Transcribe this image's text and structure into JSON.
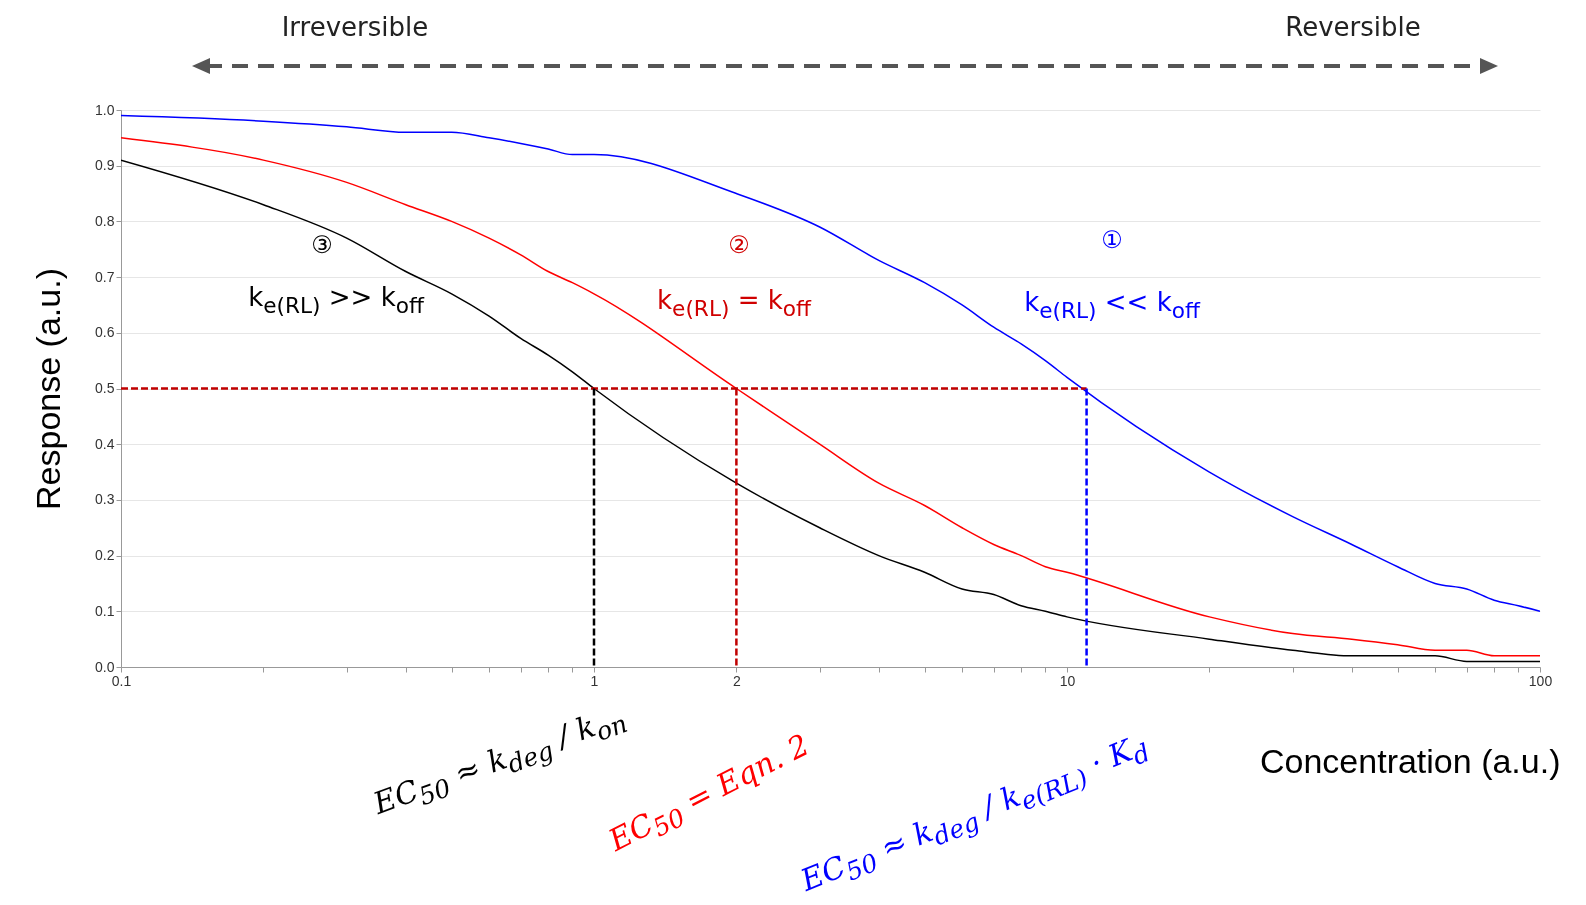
{
  "chart_data": {
    "type": "line",
    "xlabel": "Concentration (a.u.)",
    "ylabel": "Response (a.u.)",
    "log": "x",
    "grid": "y",
    "xlim": [
      0.1,
      100
    ],
    "ylim": [
      0,
      1
    ],
    "xticks": [
      0.1,
      {
        "value": 0.2,
        "label": null
      },
      {
        "value": 0.3,
        "label": null
      },
      {
        "value": 0.4,
        "label": null
      },
      {
        "value": 0.5,
        "label": null
      },
      {
        "value": 0.6,
        "label": null
      },
      {
        "value": 0.7,
        "label": null
      },
      {
        "value": 0.8,
        "label": null
      },
      {
        "value": 0.9,
        "label": null
      },
      1,
      2,
      {
        "value": 3,
        "label": null
      },
      {
        "value": 4,
        "label": null
      },
      {
        "value": 5,
        "label": null
      },
      {
        "value": 6,
        "label": null
      },
      {
        "value": 7,
        "label": null
      },
      {
        "value": 8,
        "label": null
      },
      {
        "value": 9,
        "label": null
      },
      10,
      {
        "value": 20,
        "label": null
      },
      {
        "value": 30,
        "label": null
      },
      {
        "value": 40,
        "label": null
      },
      {
        "value": 50,
        "label": null
      },
      {
        "value": 60,
        "label": null
      },
      {
        "value": 70,
        "label": null
      },
      {
        "value": 80,
        "label": null
      },
      {
        "value": 90,
        "label": null
      },
      100
    ],
    "yticks": [
      {
        "value": 0,
        "label": "0.0"
      },
      0.1,
      0.2,
      0.3,
      0.4,
      0.5,
      0.6,
      0.7,
      0.8,
      0.9,
      {
        "value": 1,
        "label": "1.0"
      }
    ],
    "x": [
      0.1,
      0.2,
      0.3,
      0.4,
      0.5,
      0.6,
      0.7,
      0.8,
      0.9,
      1,
      2,
      3,
      4,
      5,
      6,
      7,
      8,
      9,
      10,
      20,
      30,
      40,
      50,
      60,
      70,
      80,
      90,
      100
    ],
    "series": [
      {
        "color": "#0000ff",
        "values": [
          0.99,
          0.98,
          0.97,
          0.96,
          0.96,
          0.95,
          0.94,
          0.93,
          0.92,
          0.92,
          0.85,
          0.79,
          0.73,
          0.69,
          0.65,
          0.61,
          0.58,
          0.55,
          0.52,
          0.35,
          0.27,
          0.22,
          0.18,
          0.15,
          0.14,
          0.12,
          0.11,
          0.1
        ]
      },
      {
        "color": "#ff0000",
        "values": [
          0.95,
          0.91,
          0.87,
          0.83,
          0.8,
          0.77,
          0.74,
          0.71,
          0.69,
          0.67,
          0.5,
          0.4,
          0.33,
          0.29,
          0.25,
          0.22,
          0.2,
          0.18,
          0.17,
          0.09,
          0.06,
          0.05,
          0.04,
          0.03,
          0.03,
          0.02,
          0.02,
          0.02
        ]
      },
      {
        "color": "#000000",
        "values": [
          0.91,
          0.83,
          0.77,
          0.71,
          0.67,
          0.63,
          0.59,
          0.56,
          0.53,
          0.5,
          0.33,
          0.25,
          0.2,
          0.17,
          0.14,
          0.13,
          0.11,
          0.1,
          0.09,
          0.05,
          0.03,
          0.02,
          0.02,
          0.02,
          0.01,
          0.01,
          0.01,
          0.01
        ]
      },
      {
        "color": "#c00000",
        "line_style": "dashed",
        "x": [
          0.1,
          11
        ],
        "values": [
          0.5,
          0.5
        ]
      },
      {
        "color": "#000000",
        "line_style": "dashed",
        "x": [
          1,
          1
        ],
        "values": [
          0.5,
          0
        ]
      },
      {
        "color": "#c00000",
        "line_style": "dashed",
        "x": [
          2,
          2
        ],
        "values": [
          0.5,
          0
        ]
      },
      {
        "color": "#0000ff",
        "line_style": "dashed",
        "x": [
          11,
          11
        ],
        "values": [
          0.5,
          0
        ]
      }
    ],
    "annotations": [
      "Irreversible",
      "Reversible",
      "③",
      "k$_{e(RL)}$ >> k$_{off}$",
      "②",
      "k$_{e(RL)}$ = k$_{off}$",
      "①",
      "k$_{e(RL)}$ << k$_{off}$",
      "EC$_{50}$ ≈ k$_{deg}$ / k$_{on}$",
      "EC$_{50}$ = Eqn. 2",
      "EC$_{50}$ ≈ k$_{deg}$ / k$_{e(RL)}$ · K$_{d}$"
    ]
  }
}
